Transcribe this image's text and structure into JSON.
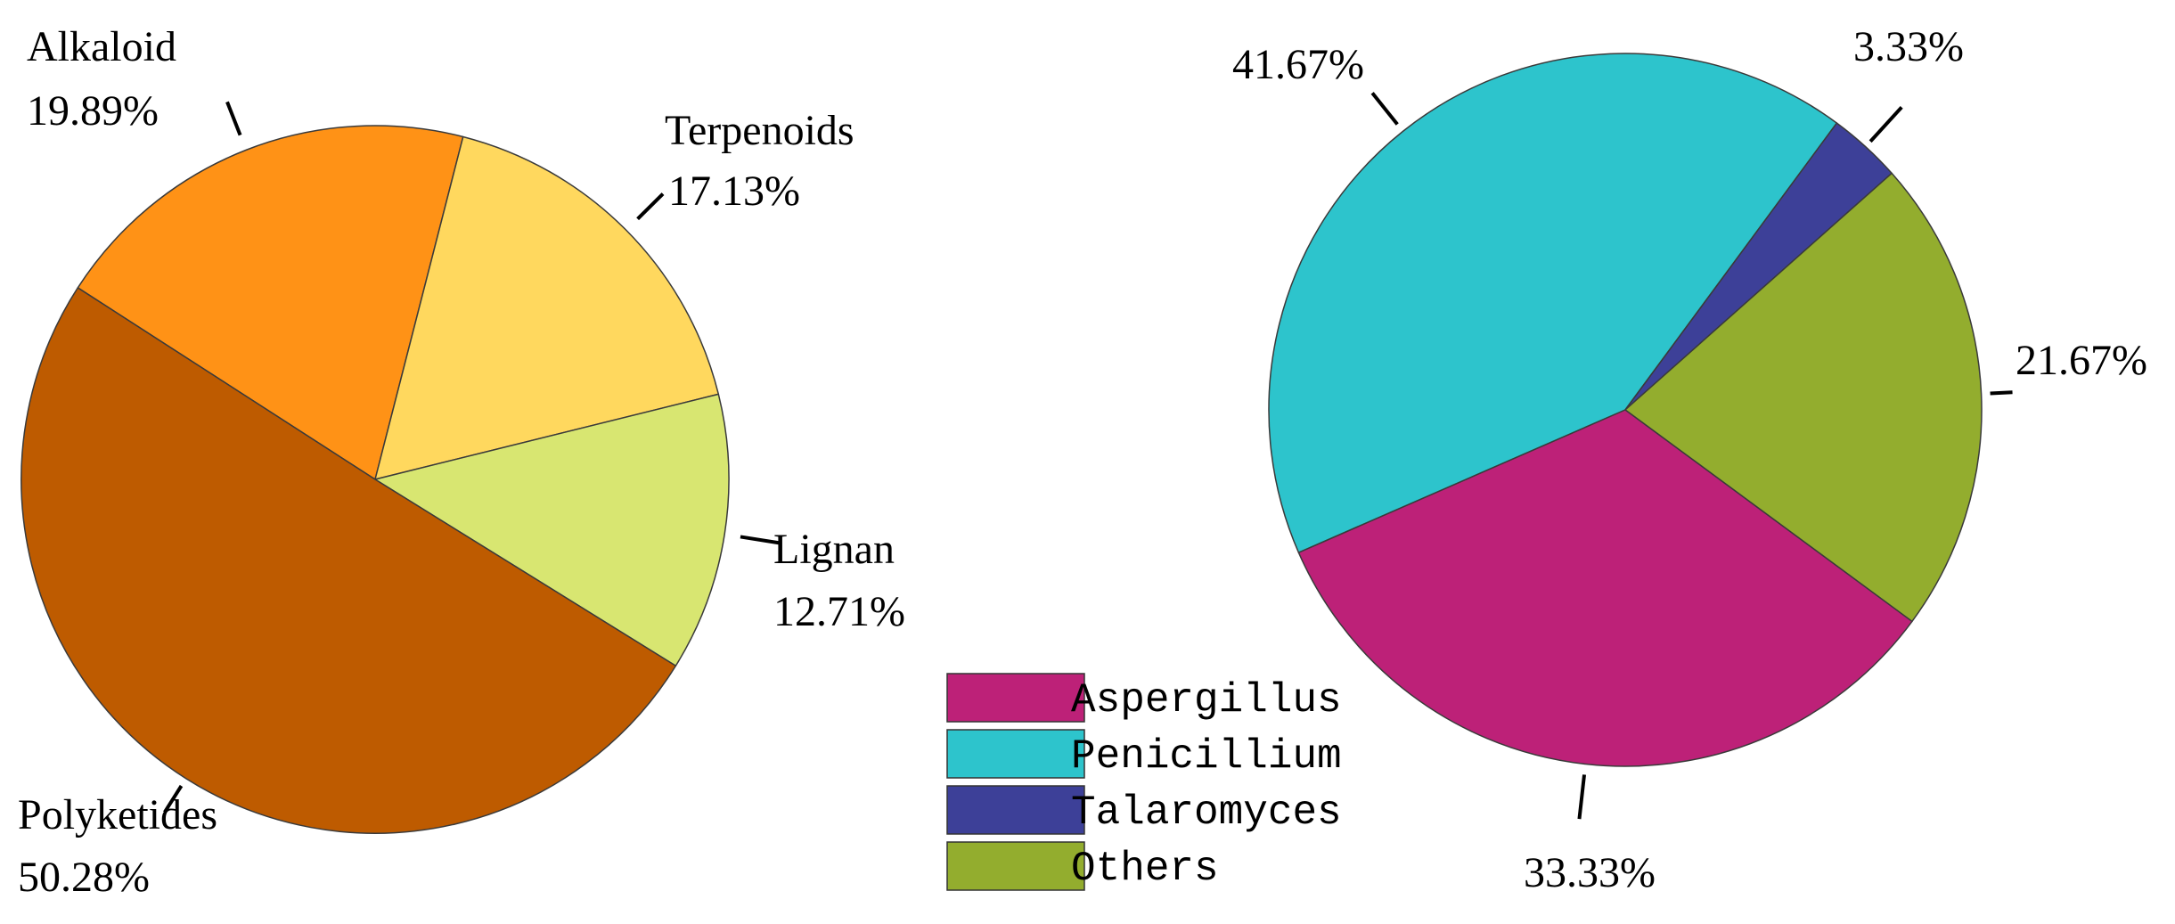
{
  "chart_data": [
    {
      "type": "pie",
      "title": "",
      "slices": [
        {
          "name": "Alkaloid",
          "value": 19.89,
          "label": "19.89%",
          "color": "#FF9216"
        },
        {
          "name": "Terpenoids",
          "value": 17.13,
          "label": "17.13%",
          "color": "#FFD85E"
        },
        {
          "name": "Lignan",
          "value": 12.71,
          "label": "12.71%",
          "color": "#D8E671"
        },
        {
          "name": "Polyketides",
          "value": 50.28,
          "label": "50.28%",
          "color": "#BE5B00"
        }
      ]
    },
    {
      "type": "pie",
      "title": "",
      "legend_position": "left",
      "slices": [
        {
          "name": "Penicillium",
          "value": 41.67,
          "label": "41.67%",
          "color": "#2DC4CC"
        },
        {
          "name": "Talaromyces",
          "value": 3.33,
          "label": "3.33%",
          "color": "#3D4098"
        },
        {
          "name": "Others",
          "value": 21.67,
          "label": "21.67%",
          "color": "#93AD2E"
        },
        {
          "name": "Aspergillus",
          "value": 33.33,
          "label": "33.33%",
          "color": "#BD2178"
        }
      ],
      "legend": [
        {
          "name": "Aspergillus",
          "color": "#BD2178"
        },
        {
          "name": "Penicillium",
          "color": "#2DC4CC"
        },
        {
          "name": "Talaromyces",
          "color": "#3D4098"
        },
        {
          "name": "Others",
          "color": "#93AD2E"
        }
      ]
    }
  ]
}
